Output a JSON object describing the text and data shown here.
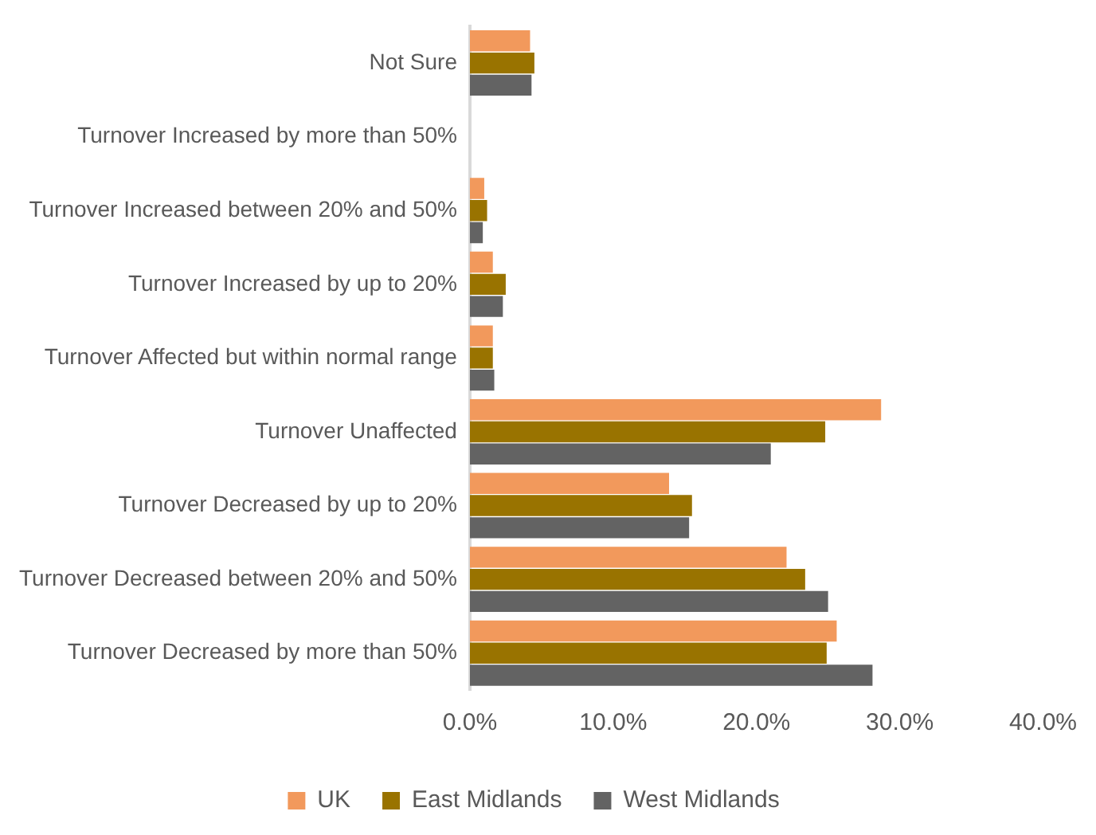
{
  "chart_data": {
    "type": "bar",
    "orientation": "horizontal",
    "categories": [
      "Not Sure",
      "Turnover Increased by more than 50%",
      "Turnover Increased between 20% and 50%",
      "Turnover Increased by up to 20%",
      "Turnover Affected but within normal range",
      "Turnover Unaffected",
      "Turnover Decreased by up to 20%",
      "Turnover Decreased between 20% and 50%",
      "Turnover Decreased by more than 50%"
    ],
    "series": [
      {
        "name": "UK",
        "color": "#f2995c",
        "values": [
          4.2,
          0,
          1.0,
          1.6,
          1.6,
          28.7,
          13.9,
          22.1,
          25.6
        ]
      },
      {
        "name": "East Midlands",
        "color": "#997300",
        "values": [
          4.5,
          0,
          1.2,
          2.5,
          1.6,
          24.8,
          15.5,
          23.4,
          24.9
        ]
      },
      {
        "name": "West Midlands",
        "color": "#636363",
        "values": [
          4.3,
          0,
          0.9,
          2.3,
          1.7,
          21.0,
          15.3,
          25.0,
          28.1
        ]
      }
    ],
    "xlim": [
      0,
      40
    ],
    "xticks": [
      {
        "value": 0,
        "label": "0.0%"
      },
      {
        "value": 10,
        "label": "10.0%"
      },
      {
        "value": 20,
        "label": "20.0%"
      },
      {
        "value": 30,
        "label": "30.0%"
      },
      {
        "value": 40,
        "label": "40.0%"
      }
    ],
    "grid": false,
    "legend": "bottom"
  }
}
